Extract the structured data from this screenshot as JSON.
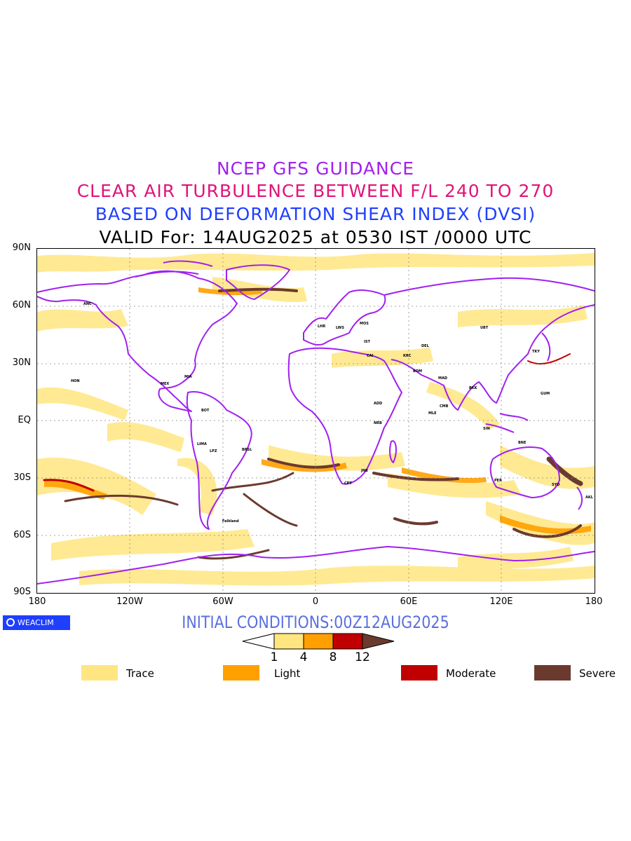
{
  "header": {
    "line1": "NCEP GFS GUIDANCE",
    "line2": "CLEAR AIR TURBULENCE BETWEEN F/L 240 TO 270",
    "line3": "BASED ON DEFORMATION SHEAR INDEX (DVSI)",
    "line4": "VALID For: 14AUG2025 at 0530 IST /0000 UTC"
  },
  "axes": {
    "lat_labels": [
      "90N",
      "60N",
      "30N",
      "EQ",
      "30S",
      "60S",
      "90S"
    ],
    "lon_labels": [
      "180",
      "120W",
      "60W",
      "0",
      "60E",
      "120E",
      "180"
    ]
  },
  "logo": {
    "text": "WEACLIM"
  },
  "footer": {
    "initial_conditions": "INITIAL CONDITIONS:00Z12AUG2025"
  },
  "colorbar": {
    "ticks": [
      "1",
      "4",
      "8",
      "12"
    ],
    "colors": [
      "#ffe680",
      "#ffa000",
      "#c00000",
      "#6b3a2e"
    ]
  },
  "legend": [
    {
      "label": "Trace",
      "color": "#ffe680"
    },
    {
      "label": "Light",
      "color": "#ffa000"
    },
    {
      "label": "Moderate",
      "color": "#c00000"
    },
    {
      "label": "Severe",
      "color": "#6b3a2e"
    }
  ],
  "map_colors": {
    "coastline": "#a020f0",
    "grid": "#888888"
  },
  "station_labels": [
    "ANC",
    "HON",
    "MEX",
    "MIA",
    "BOT",
    "LIMA",
    "LPZ",
    "BRSL",
    "CPT",
    "JNB",
    "NRB",
    "ADD",
    "CAI",
    "IST",
    "LHR",
    "LWS",
    "MOS",
    "KRC",
    "DEL",
    "BOM",
    "MLE",
    "CMB",
    "MAD",
    "BKK",
    "SIN",
    "SYD",
    "AKL",
    "GUM",
    "TKY",
    "UBT",
    "BNE",
    "PER",
    "Falkland"
  ]
}
